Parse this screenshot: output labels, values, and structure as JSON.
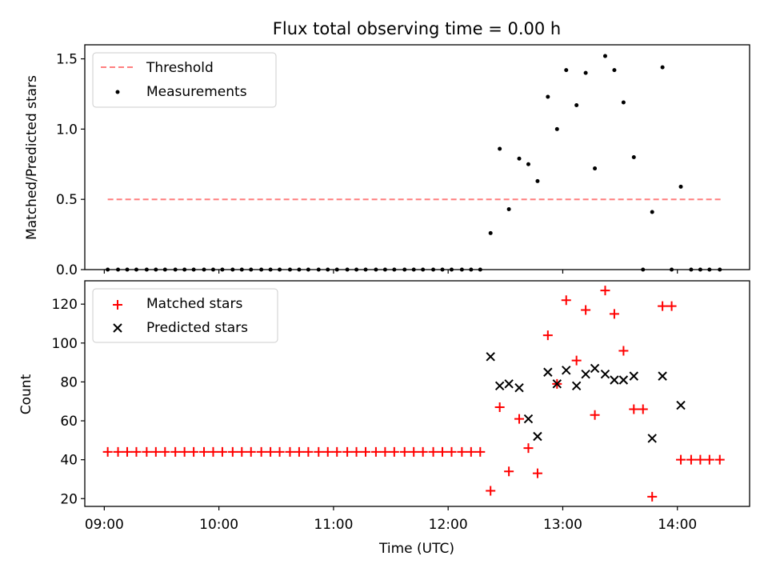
{
  "title": "Flux total observing time = 0.00 h",
  "colors": {
    "threshold": "#ff7f7f",
    "measurements": "#000000",
    "matched": "#ff0000",
    "predicted": "#000000"
  },
  "chart_data": [
    {
      "type": "scatter",
      "ylabel": "Matched/Predicted stars",
      "ylim": [
        0,
        1.6
      ],
      "xlim": [
        8.83,
        14.63
      ],
      "yticks": [
        0,
        0.5,
        1.0,
        1.5
      ],
      "ytick_labels": [
        "0.0",
        "0.5",
        "1.0",
        "1.5"
      ],
      "legend_position": "top-left",
      "series": [
        {
          "name": "Threshold",
          "kind": "dashed-line",
          "x": [
            9.03,
            14.38
          ],
          "y": [
            0.5,
            0.5
          ]
        },
        {
          "name": "Measurements",
          "kind": "points",
          "x": [
            9.03,
            9.12,
            9.2,
            9.28,
            9.37,
            9.45,
            9.53,
            9.62,
            9.7,
            9.78,
            9.87,
            9.95,
            10.03,
            10.12,
            10.2,
            10.28,
            10.37,
            10.45,
            10.53,
            10.62,
            10.7,
            10.78,
            10.87,
            10.95,
            11.03,
            11.12,
            11.2,
            11.28,
            11.37,
            11.45,
            11.53,
            11.62,
            11.7,
            11.78,
            11.87,
            11.95,
            12.03,
            12.12,
            12.2,
            12.28,
            12.37,
            12.45,
            12.53,
            12.62,
            12.7,
            12.78,
            12.87,
            12.95,
            13.03,
            13.12,
            13.2,
            13.28,
            13.37,
            13.45,
            13.53,
            13.62,
            13.7,
            13.78,
            13.87,
            13.95,
            14.03,
            14.12,
            14.2,
            14.28,
            14.37
          ],
          "y": [
            0,
            0,
            0,
            0,
            0,
            0,
            0,
            0,
            0,
            0,
            0,
            0,
            0,
            0,
            0,
            0,
            0,
            0,
            0,
            0,
            0,
            0,
            0,
            0,
            0,
            0,
            0,
            0,
            0,
            0,
            0,
            0,
            0,
            0,
            0,
            0,
            0,
            0,
            0,
            0,
            0.26,
            0.86,
            0.43,
            0.79,
            0.75,
            0.63,
            1.23,
            1.0,
            1.42,
            1.17,
            1.4,
            0.72,
            1.52,
            1.42,
            1.19,
            0.8,
            0,
            0.41,
            1.44,
            0,
            0.59,
            0,
            0,
            0,
            0
          ]
        }
      ]
    },
    {
      "type": "scatter",
      "xlabel": "Time (UTC)",
      "ylabel": "Count",
      "ylim": [
        16,
        132
      ],
      "xlim": [
        8.83,
        14.63
      ],
      "yticks": [
        20,
        40,
        60,
        80,
        100,
        120
      ],
      "ytick_labels": [
        "20",
        "40",
        "60",
        "80",
        "100",
        "120"
      ],
      "xticks": [
        9,
        10,
        11,
        12,
        13,
        14
      ],
      "xtick_labels": [
        "09:00",
        "10:00",
        "11:00",
        "12:00",
        "13:00",
        "14:00"
      ],
      "legend_position": "top-left",
      "series": [
        {
          "name": "Matched stars",
          "kind": "plus",
          "x": [
            9.03,
            9.12,
            9.2,
            9.28,
            9.37,
            9.45,
            9.53,
            9.62,
            9.7,
            9.78,
            9.87,
            9.95,
            10.03,
            10.12,
            10.2,
            10.28,
            10.37,
            10.45,
            10.53,
            10.62,
            10.7,
            10.78,
            10.87,
            10.95,
            11.03,
            11.12,
            11.2,
            11.28,
            11.37,
            11.45,
            11.53,
            11.62,
            11.7,
            11.78,
            11.87,
            11.95,
            12.03,
            12.12,
            12.2,
            12.28,
            12.37,
            12.45,
            12.53,
            12.62,
            12.7,
            12.78,
            12.87,
            12.95,
            13.03,
            13.12,
            13.2,
            13.28,
            13.37,
            13.45,
            13.53,
            13.62,
            13.7,
            13.78,
            13.87,
            13.95,
            14.03,
            14.12,
            14.2,
            14.28,
            14.37
          ],
          "y": [
            44,
            44,
            44,
            44,
            44,
            44,
            44,
            44,
            44,
            44,
            44,
            44,
            44,
            44,
            44,
            44,
            44,
            44,
            44,
            44,
            44,
            44,
            44,
            44,
            44,
            44,
            44,
            44,
            44,
            44,
            44,
            44,
            44,
            44,
            44,
            44,
            44,
            44,
            44,
            44,
            24,
            67,
            34,
            61,
            46,
            33,
            104,
            79,
            122,
            91,
            117,
            63,
            127,
            115,
            96,
            66,
            66,
            21,
            119,
            119,
            40,
            40,
            40,
            40,
            40
          ]
        },
        {
          "name": "Predicted stars",
          "kind": "x",
          "x": [
            12.37,
            12.45,
            12.53,
            12.62,
            12.7,
            12.78,
            12.87,
            12.95,
            13.03,
            13.12,
            13.2,
            13.28,
            13.37,
            13.45,
            13.53,
            13.62,
            13.78,
            13.87,
            14.03
          ],
          "y": [
            93,
            78,
            79,
            77,
            61,
            52,
            85,
            79,
            86,
            78,
            84,
            87,
            84,
            81,
            81,
            83,
            51,
            83,
            68
          ]
        }
      ]
    }
  ]
}
